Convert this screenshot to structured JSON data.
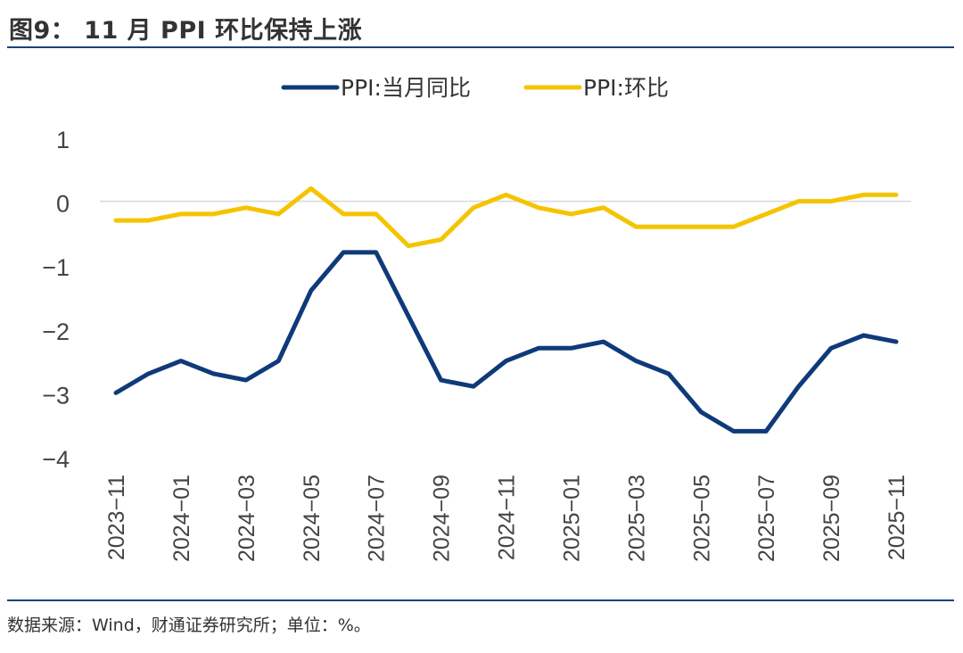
{
  "header": {
    "title": "图9： 11 月 PPI 环比保持上涨"
  },
  "footer": {
    "source": "数据来源：Wind，财通证券研究所；单位：%。"
  },
  "colors": {
    "series_yoy": "#0f3a7a",
    "series_mom": "#f5c400",
    "rule": "#1f3f7a",
    "zero_line": "#d9d9d9"
  },
  "chart_data": {
    "type": "line",
    "title": "11 月 PPI 环比保持上涨",
    "xlabel": "",
    "ylabel": "",
    "ylim": [
      -4,
      1
    ],
    "yticks": [
      1,
      0,
      -1,
      -2,
      -3,
      -4
    ],
    "ytick_labels": [
      "1",
      "0",
      "−1",
      "−2",
      "−3",
      "−4"
    ],
    "legend_position": "top-center",
    "grid": false,
    "x": [
      "2023-11",
      "2023-12",
      "2024-01",
      "2024-02",
      "2024-03",
      "2024-04",
      "2024-05",
      "2024-06",
      "2024-07",
      "2024-08",
      "2024-09",
      "2024-10",
      "2024-11",
      "2024-12",
      "2025-01",
      "2025-02",
      "2025-03",
      "2025-04",
      "2025-05",
      "2025-06",
      "2025-07",
      "2025-08",
      "2025-09",
      "2025-10",
      "2025-11"
    ],
    "xtick_labels": [
      "2023−11",
      "2024−01",
      "2024−03",
      "2024−05",
      "2024−07",
      "2024−09",
      "2024−11",
      "2025−01",
      "2025−03",
      "2025−05",
      "2025−07",
      "2025−09",
      "2025−11"
    ],
    "series": [
      {
        "name": "PPI:当月同比",
        "values": [
          -3.0,
          -2.7,
          -2.5,
          -2.7,
          -2.8,
          -2.5,
          -1.4,
          -0.8,
          -0.8,
          -1.8,
          -2.8,
          -2.9,
          -2.5,
          -2.3,
          -2.3,
          -2.2,
          -2.5,
          -2.7,
          -3.3,
          -3.6,
          -3.6,
          -2.9,
          -2.3,
          -2.1,
          -2.2
        ]
      },
      {
        "name": "PPI:环比",
        "values": [
          -0.3,
          -0.3,
          -0.2,
          -0.2,
          -0.1,
          -0.2,
          0.2,
          -0.2,
          -0.2,
          -0.7,
          -0.6,
          -0.1,
          0.1,
          -0.1,
          -0.2,
          -0.1,
          -0.4,
          -0.4,
          -0.4,
          -0.4,
          -0.2,
          0.0,
          0.0,
          0.1,
          0.1
        ]
      }
    ]
  }
}
